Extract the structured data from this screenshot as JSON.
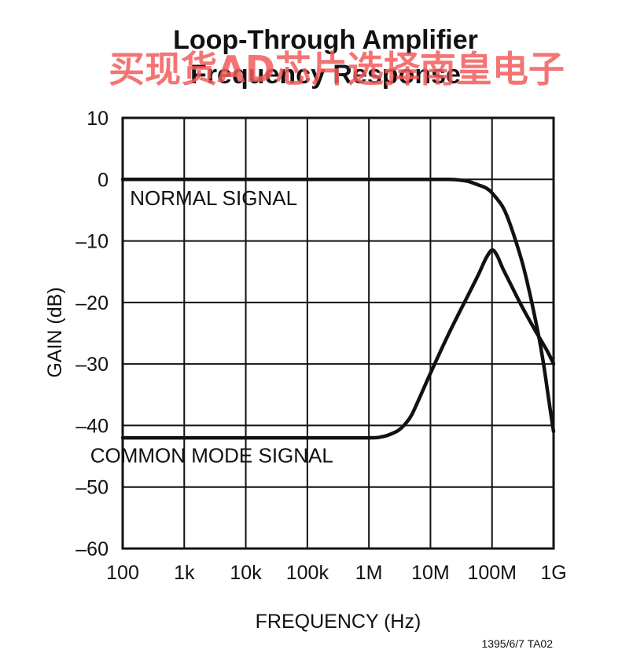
{
  "colors": {
    "ink": "#111111",
    "grid": "#111111",
    "watermark": "#f25c5c",
    "background": "#ffffff"
  },
  "watermark": {
    "text": "买现货AD芯片选择南皇电子"
  },
  "figure_id": "1395/6/7 TA02",
  "chart_data": {
    "type": "line",
    "title": "Loop-Through Amplifier",
    "subtitle": "Frequency Response",
    "xlabel": "FREQUENCY (Hz)",
    "ylabel": "GAIN (dB)",
    "xscale": "log",
    "xlim": [
      100,
      1000000000
    ],
    "ylim": [
      -60,
      10
    ],
    "grid": true,
    "x_ticks": [
      {
        "value": 100,
        "label": "100"
      },
      {
        "value": 1000,
        "label": "1k"
      },
      {
        "value": 10000,
        "label": "10k"
      },
      {
        "value": 100000,
        "label": "100k"
      },
      {
        "value": 1000000,
        "label": "1M"
      },
      {
        "value": 10000000,
        "label": "10M"
      },
      {
        "value": 100000000,
        "label": "100M"
      },
      {
        "value": 1000000000,
        "label": "1G"
      }
    ],
    "y_ticks": [
      {
        "value": 10,
        "label": "10"
      },
      {
        "value": 0,
        "label": "0"
      },
      {
        "value": -10,
        "label": "–10"
      },
      {
        "value": -20,
        "label": "–20"
      },
      {
        "value": -30,
        "label": "–30"
      },
      {
        "value": -40,
        "label": "–40"
      },
      {
        "value": -50,
        "label": "–50"
      },
      {
        "value": -60,
        "label": "–60"
      }
    ],
    "series": [
      {
        "name": "NORMAL SIGNAL",
        "x": [
          100,
          1000,
          10000,
          100000,
          1000000,
          10000000,
          20000000,
          30000000,
          40000000,
          50000000,
          60000000,
          80000000,
          100000000,
          150000000,
          200000000,
          300000000,
          400000000,
          500000000,
          600000000,
          700000000,
          800000000,
          900000000,
          1000000000
        ],
        "y": [
          0,
          0,
          0,
          0,
          0,
          0,
          0,
          -0.1,
          -0.3,
          -0.6,
          -0.9,
          -1.4,
          -2.2,
          -4.5,
          -7.5,
          -13,
          -18,
          -22.5,
          -26.5,
          -30.5,
          -34.5,
          -38,
          -41
        ]
      },
      {
        "name": "COMMON MODE SIGNAL",
        "x": [
          100,
          1000,
          10000,
          100000,
          1000000,
          1500000,
          2000000,
          3000000,
          4000000,
          5000000,
          7000000,
          10000000,
          20000000,
          40000000,
          60000000,
          80000000,
          100000000,
          120000000,
          150000000,
          200000000,
          300000000,
          500000000,
          800000000,
          1000000000
        ],
        "y": [
          -42,
          -42,
          -42,
          -42,
          -42,
          -41.9,
          -41.6,
          -40.8,
          -39.6,
          -38.2,
          -35,
          -31.5,
          -25,
          -19,
          -15.5,
          -12.8,
          -11.5,
          -12.3,
          -14.5,
          -17,
          -20.5,
          -24.5,
          -28,
          -30
        ]
      }
    ],
    "annotations": [
      {
        "text": "NORMAL SIGNAL",
        "x": 3000,
        "y": -4.2
      },
      {
        "text": "COMMON MODE SIGNAL",
        "x": 2800,
        "y": -46
      }
    ]
  }
}
